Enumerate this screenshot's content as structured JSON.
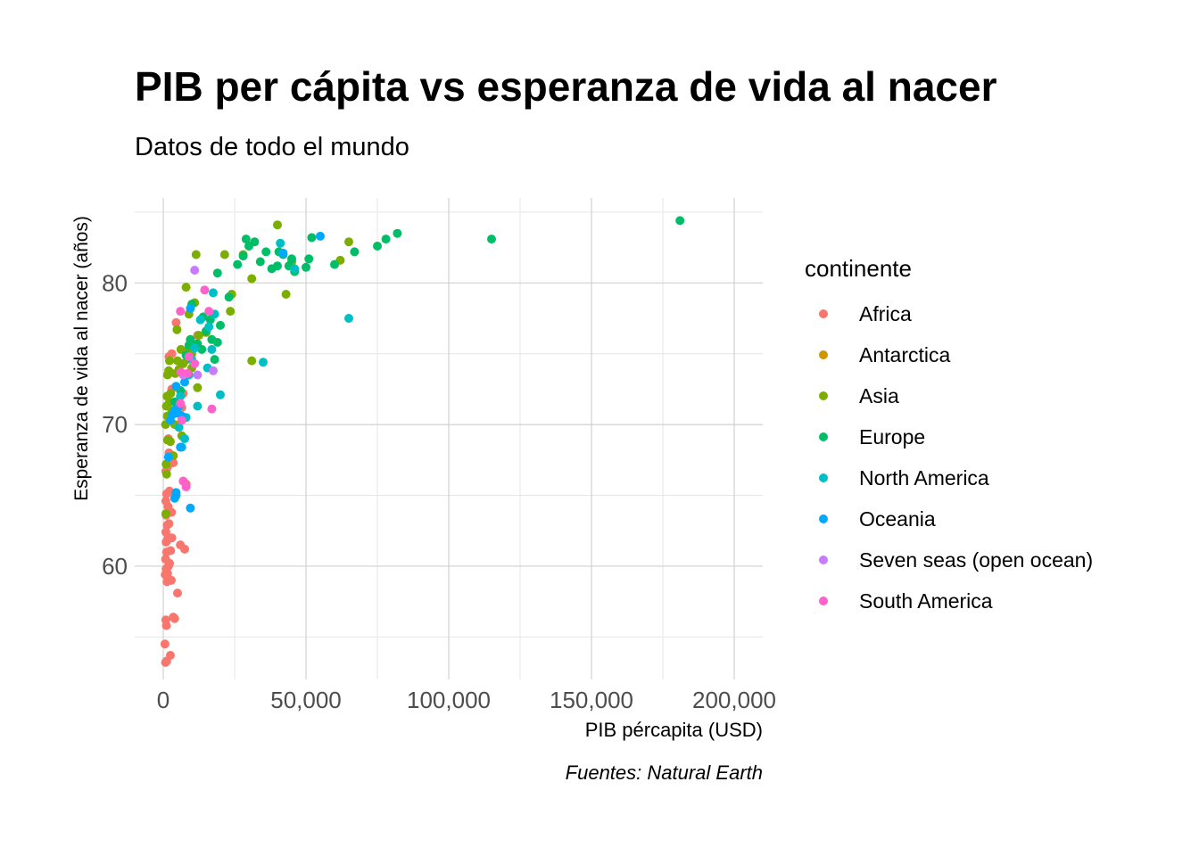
{
  "chart_data": {
    "type": "scatter",
    "title": "PIB per cápita vs esperanza de vida al nacer",
    "subtitle": "Datos de todo el mundo",
    "caption": "Fuentes: Natural Earth",
    "xlabel": "PIB pércapita (USD)",
    "ylabel": "Esperanza de vida al nacer (años)",
    "xlim": [
      -10000,
      210000
    ],
    "ylim": [
      52,
      86
    ],
    "x_ticks": [
      0,
      50000,
      100000,
      150000,
      200000
    ],
    "x_tick_labels": [
      "0",
      "50,000",
      "100,000",
      "150,000",
      "200,000"
    ],
    "y_ticks": [
      60,
      70,
      80
    ],
    "y_tick_labels": [
      "60",
      "70",
      "80"
    ],
    "grid": true,
    "legend": {
      "title": "continente",
      "placement": "right",
      "items": [
        {
          "name": "Africa",
          "color": "#F8766D"
        },
        {
          "name": "Antarctica",
          "color": "#CD9600"
        },
        {
          "name": "Asia",
          "color": "#7CAE00"
        },
        {
          "name": "Europe",
          "color": "#00BE67"
        },
        {
          "name": "North America",
          "color": "#00BFC4"
        },
        {
          "name": "Oceania",
          "color": "#00A9FF"
        },
        {
          "name": "Seven seas (open ocean)",
          "color": "#C77CFF"
        },
        {
          "name": "South America",
          "color": "#FF61CC"
        }
      ]
    },
    "series": [
      {
        "name": "Africa",
        "color": "#F8766D",
        "points": [
          [
            800,
            53.2
          ],
          [
            1200,
            53.3
          ],
          [
            2500,
            53.7
          ],
          [
            600,
            54.5
          ],
          [
            1100,
            55.8
          ],
          [
            900,
            56.2
          ],
          [
            4000,
            56.3
          ],
          [
            3500,
            56.4
          ],
          [
            5000,
            58.1
          ],
          [
            1300,
            58.9
          ],
          [
            2000,
            59.0
          ],
          [
            2800,
            59.0
          ],
          [
            700,
            59.4
          ],
          [
            1500,
            59.5
          ],
          [
            1000,
            59.8
          ],
          [
            1800,
            60.0
          ],
          [
            2200,
            60.2
          ],
          [
            800,
            60.5
          ],
          [
            1200,
            61.0
          ],
          [
            2600,
            61.1
          ],
          [
            6000,
            61.5
          ],
          [
            7500,
            61.2
          ],
          [
            1000,
            61.7
          ],
          [
            1600,
            61.9
          ],
          [
            2400,
            62.0
          ],
          [
            3000,
            62.0
          ],
          [
            900,
            62.4
          ],
          [
            1400,
            62.9
          ],
          [
            2000,
            63.0
          ],
          [
            1000,
            63.6
          ],
          [
            2900,
            63.8
          ],
          [
            1700,
            64.2
          ],
          [
            900,
            64.6
          ],
          [
            1200,
            65.1
          ],
          [
            2200,
            65.3
          ],
          [
            4500,
            65.0
          ],
          [
            7000,
            66.0
          ],
          [
            8000,
            65.8
          ],
          [
            900,
            66.7
          ],
          [
            1500,
            67.0
          ],
          [
            3500,
            67.3
          ],
          [
            2000,
            68.0
          ],
          [
            1800,
            69.0
          ],
          [
            4500,
            70.9
          ],
          [
            6500,
            71.2
          ],
          [
            3000,
            72.5
          ],
          [
            7000,
            72.2
          ],
          [
            12000,
            76.3
          ],
          [
            4500,
            77.2
          ],
          [
            2000,
            74.8
          ],
          [
            3000,
            75.0
          ]
        ]
      },
      {
        "name": "Asia",
        "color": "#7CAE00",
        "points": [
          [
            900,
            63.7
          ],
          [
            1200,
            66.5
          ],
          [
            1000,
            67.2
          ],
          [
            1500,
            68.9
          ],
          [
            2500,
            68.8
          ],
          [
            800,
            70.0
          ],
          [
            1400,
            70.6
          ],
          [
            1100,
            71.3
          ],
          [
            2200,
            71.6
          ],
          [
            3000,
            71.0
          ],
          [
            1300,
            72.0
          ],
          [
            2600,
            72.2
          ],
          [
            1500,
            73.5
          ],
          [
            1900,
            73.8
          ],
          [
            2200,
            74.5
          ],
          [
            4200,
            73.6
          ],
          [
            5000,
            74.5
          ],
          [
            7000,
            74.3
          ],
          [
            8500,
            74.6
          ],
          [
            10000,
            75.0
          ],
          [
            4800,
            76.7
          ],
          [
            6200,
            75.3
          ],
          [
            9000,
            75.4
          ],
          [
            12500,
            76.3
          ],
          [
            8000,
            79.7
          ],
          [
            11000,
            78.6
          ],
          [
            9000,
            77.8
          ],
          [
            11500,
            82.0
          ],
          [
            15000,
            76.5
          ],
          [
            21500,
            82.0
          ],
          [
            24000,
            79.2
          ],
          [
            23500,
            78.0
          ],
          [
            28000,
            82.0
          ],
          [
            31000,
            80.3
          ],
          [
            40000,
            84.1
          ],
          [
            43000,
            79.2
          ],
          [
            45000,
            81.5
          ],
          [
            62000,
            81.6
          ],
          [
            65000,
            82.9
          ],
          [
            31000,
            74.5
          ],
          [
            3500,
            67.8
          ],
          [
            4000,
            70.0
          ],
          [
            6500,
            69.2
          ],
          [
            5500,
            73.9
          ],
          [
            10000,
            74.0
          ],
          [
            12000,
            72.6
          ]
        ]
      },
      {
        "name": "Europe",
        "color": "#00BE67",
        "points": [
          [
            4000,
            71.6
          ],
          [
            6000,
            72.4
          ],
          [
            8000,
            74.9
          ],
          [
            9000,
            75.6
          ],
          [
            9500,
            76.0
          ],
          [
            10000,
            78.5
          ],
          [
            12000,
            75.7
          ],
          [
            13500,
            75.3
          ],
          [
            14000,
            77.6
          ],
          [
            15000,
            76.6
          ],
          [
            16500,
            77.4
          ],
          [
            17000,
            76.0
          ],
          [
            18000,
            74.6
          ],
          [
            19000,
            75.8
          ],
          [
            20000,
            77.0
          ],
          [
            19000,
            80.7
          ],
          [
            23000,
            79.0
          ],
          [
            26000,
            81.3
          ],
          [
            28000,
            81.9
          ],
          [
            29000,
            83.1
          ],
          [
            30000,
            82.6
          ],
          [
            32000,
            82.9
          ],
          [
            34000,
            81.5
          ],
          [
            36000,
            82.2
          ],
          [
            38000,
            81.0
          ],
          [
            40000,
            81.2
          ],
          [
            40500,
            82.2
          ],
          [
            42000,
            82.0
          ],
          [
            44000,
            81.2
          ],
          [
            45000,
            81.7
          ],
          [
            46000,
            80.8
          ],
          [
            50000,
            81.1
          ],
          [
            51000,
            81.7
          ],
          [
            52000,
            83.2
          ],
          [
            60000,
            81.3
          ],
          [
            67000,
            82.2
          ],
          [
            75000,
            82.6
          ],
          [
            78000,
            83.1
          ],
          [
            82000,
            83.5
          ],
          [
            115000,
            83.1
          ],
          [
            181000,
            84.4
          ]
        ]
      },
      {
        "name": "North America",
        "color": "#00BFC4",
        "points": [
          [
            5500,
            69.8
          ],
          [
            6500,
            68.4
          ],
          [
            7500,
            69.0
          ],
          [
            8000,
            70.5
          ],
          [
            9000,
            73.5
          ],
          [
            10000,
            74.6
          ],
          [
            11000,
            75.4
          ],
          [
            12000,
            71.3
          ],
          [
            13000,
            77.4
          ],
          [
            15500,
            74.0
          ],
          [
            16000,
            76.9
          ],
          [
            17000,
            75.3
          ],
          [
            17500,
            79.3
          ],
          [
            18000,
            77.8
          ],
          [
            20000,
            72.1
          ],
          [
            35000,
            74.4
          ],
          [
            41000,
            82.8
          ],
          [
            46000,
            81.0
          ],
          [
            65000,
            77.5
          ],
          [
            4500,
            65.0
          ],
          [
            6000,
            72.0
          ]
        ]
      },
      {
        "name": "Oceania",
        "color": "#00A9FF",
        "points": [
          [
            1800,
            67.7
          ],
          [
            2500,
            70.3
          ],
          [
            3200,
            70.7
          ],
          [
            4000,
            71.0
          ],
          [
            4500,
            72.7
          ],
          [
            5000,
            70.8
          ],
          [
            5500,
            71.3
          ],
          [
            6000,
            68.4
          ],
          [
            6500,
            70.6
          ],
          [
            7500,
            73.0
          ],
          [
            4000,
            64.8
          ],
          [
            4500,
            65.2
          ],
          [
            9500,
            64.1
          ],
          [
            9500,
            78.2
          ],
          [
            42000,
            82.1
          ],
          [
            55000,
            83.3
          ]
        ]
      },
      {
        "name": "Seven seas (open ocean)",
        "color": "#C77CFF",
        "points": [
          [
            11000,
            80.9
          ],
          [
            12000,
            73.5
          ],
          [
            17500,
            73.8
          ],
          [
            7000,
            73.5
          ]
        ]
      },
      {
        "name": "South America",
        "color": "#FF61CC",
        "points": [
          [
            6500,
            70.3
          ],
          [
            6000,
            71.5
          ],
          [
            7000,
            66.0
          ],
          [
            8000,
            65.6
          ],
          [
            6200,
            73.7
          ],
          [
            8500,
            73.6
          ],
          [
            6000,
            78.0
          ],
          [
            14500,
            79.5
          ],
          [
            16000,
            78.0
          ],
          [
            17000,
            71.1
          ],
          [
            9000,
            74.8
          ],
          [
            11000,
            74.3
          ]
        ]
      }
    ]
  }
}
